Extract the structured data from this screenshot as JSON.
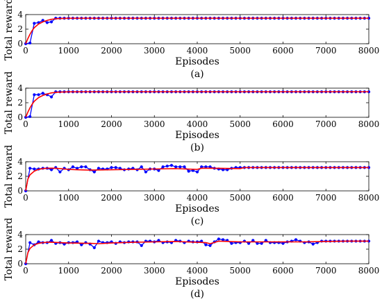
{
  "chart_data": [
    {
      "type": "line",
      "caption": "(a)",
      "xlabel": "Episodes",
      "ylabel": "Total reward",
      "xlim": [
        0,
        8000
      ],
      "ylim": [
        0,
        4
      ],
      "xticks": [
        "0",
        "1000",
        "2000",
        "3000",
        "4000",
        "5000",
        "6000",
        "7000",
        "8000"
      ],
      "yticks": [
        "0",
        "2",
        "4"
      ],
      "grid": false,
      "series": [
        {
          "role": "raw",
          "color": "#0000ff",
          "x": [
            0,
            100,
            200,
            300,
            400,
            500,
            600,
            700,
            800,
            900,
            1000,
            1100,
            1200,
            1300,
            1400,
            1500,
            1600,
            1700,
            1800,
            1900,
            2000,
            2100,
            2200,
            2300,
            2400,
            2500,
            2600,
            2700,
            2800,
            2900,
            3000,
            3100,
            3200,
            3300,
            3400,
            3500,
            3600,
            3700,
            3800,
            3900,
            4000,
            4100,
            4200,
            4300,
            4400,
            4500,
            4600,
            4700,
            4800,
            4900,
            5000,
            5100,
            5200,
            5300,
            5400,
            5500,
            5600,
            5700,
            5800,
            5900,
            6000,
            6100,
            6200,
            6300,
            6400,
            6500,
            6600,
            6700,
            6800,
            6900,
            7000,
            7100,
            7200,
            7300,
            7400,
            7500,
            7600,
            7700,
            7800,
            7900,
            8000
          ],
          "values": [
            0,
            0.1,
            2.8,
            2.9,
            3.2,
            2.9,
            3.0,
            3.5,
            3.5,
            3.5,
            3.5,
            3.5,
            3.5,
            3.5,
            3.5,
            3.5,
            3.5,
            3.5,
            3.5,
            3.5,
            3.5,
            3.5,
            3.5,
            3.5,
            3.5,
            3.5,
            3.5,
            3.5,
            3.5,
            3.5,
            3.5,
            3.5,
            3.5,
            3.5,
            3.5,
            3.5,
            3.5,
            3.5,
            3.5,
            3.5,
            3.5,
            3.5,
            3.5,
            3.5,
            3.5,
            3.5,
            3.5,
            3.5,
            3.5,
            3.5,
            3.5,
            3.5,
            3.5,
            3.5,
            3.5,
            3.5,
            3.5,
            3.5,
            3.5,
            3.5,
            3.5,
            3.5,
            3.5,
            3.5,
            3.5,
            3.5,
            3.5,
            3.5,
            3.5,
            3.5,
            3.5,
            3.5,
            3.5,
            3.5,
            3.5,
            3.5,
            3.5,
            3.5,
            3.5,
            3.5,
            3.5
          ]
        },
        {
          "role": "fit",
          "color": "#ff0000",
          "x": [
            0,
            50,
            100,
            150,
            200,
            300,
            400,
            500,
            600,
            700,
            800,
            1000,
            1500,
            2000,
            3000,
            4000,
            5000,
            6000,
            7000,
            8000
          ],
          "values": [
            0,
            0.7,
            1.3,
            1.8,
            2.2,
            2.7,
            3.0,
            3.2,
            3.35,
            3.42,
            3.46,
            3.49,
            3.5,
            3.5,
            3.5,
            3.5,
            3.5,
            3.5,
            3.5,
            3.5
          ]
        }
      ]
    },
    {
      "type": "line",
      "caption": "(b)",
      "xlabel": "Episodes",
      "ylabel": "Total reward",
      "xlim": [
        0,
        8000
      ],
      "ylim": [
        0,
        4
      ],
      "xticks": [
        "0",
        "1000",
        "2000",
        "3000",
        "4000",
        "5000",
        "6000",
        "7000",
        "8000"
      ],
      "yticks": [
        "0",
        "2",
        "4"
      ],
      "grid": false,
      "series": [
        {
          "role": "raw",
          "color": "#0000ff",
          "x": [
            0,
            100,
            200,
            300,
            400,
            500,
            600,
            700,
            800,
            900,
            1000,
            1100,
            1200,
            1300,
            1400,
            1500,
            1600,
            1700,
            1800,
            1900,
            2000,
            2100,
            2200,
            2300,
            2400,
            2500,
            2600,
            2700,
            2800,
            2900,
            3000,
            3100,
            3200,
            3300,
            3400,
            3500,
            3600,
            3700,
            3800,
            3900,
            4000,
            4100,
            4200,
            4300,
            4400,
            4500,
            4600,
            4700,
            4800,
            4900,
            5000,
            5100,
            5200,
            5300,
            5400,
            5500,
            5600,
            5700,
            5800,
            5900,
            6000,
            6100,
            6200,
            6300,
            6400,
            6500,
            6600,
            6700,
            6800,
            6900,
            7000,
            7100,
            7200,
            7300,
            7400,
            7500,
            7600,
            7700,
            7800,
            7900,
            8000
          ],
          "values": [
            0,
            0.1,
            3.1,
            3.1,
            3.3,
            3.1,
            2.8,
            3.5,
            3.5,
            3.5,
            3.5,
            3.5,
            3.5,
            3.5,
            3.5,
            3.5,
            3.5,
            3.5,
            3.5,
            3.5,
            3.5,
            3.5,
            3.5,
            3.5,
            3.5,
            3.5,
            3.5,
            3.5,
            3.5,
            3.5,
            3.5,
            3.5,
            3.5,
            3.5,
            3.5,
            3.5,
            3.5,
            3.5,
            3.5,
            3.5,
            3.5,
            3.5,
            3.5,
            3.5,
            3.5,
            3.5,
            3.5,
            3.5,
            3.5,
            3.5,
            3.5,
            3.5,
            3.5,
            3.5,
            3.5,
            3.5,
            3.5,
            3.5,
            3.5,
            3.5,
            3.5,
            3.5,
            3.5,
            3.5,
            3.5,
            3.5,
            3.5,
            3.5,
            3.5,
            3.5,
            3.5,
            3.5,
            3.5,
            3.5,
            3.5,
            3.5,
            3.5,
            3.5,
            3.5,
            3.5,
            3.5
          ]
        },
        {
          "role": "fit",
          "color": "#ff0000",
          "x": [
            0,
            50,
            100,
            150,
            200,
            300,
            400,
            500,
            600,
            700,
            800,
            1000,
            1500,
            2000,
            3000,
            4000,
            5000,
            6000,
            7000,
            8000
          ],
          "values": [
            0,
            0.7,
            1.3,
            1.8,
            2.2,
            2.7,
            3.0,
            3.2,
            3.35,
            3.42,
            3.46,
            3.49,
            3.5,
            3.5,
            3.5,
            3.5,
            3.5,
            3.5,
            3.5,
            3.5
          ]
        }
      ]
    },
    {
      "type": "line",
      "caption": "(c)",
      "xlabel": "Episodes",
      "ylabel": "Total reward",
      "xlim": [
        0,
        8000
      ],
      "ylim": [
        0,
        4
      ],
      "xticks": [
        "0",
        "1000",
        "2000",
        "3000",
        "4000",
        "5000",
        "6000",
        "7000",
        "8000"
      ],
      "yticks": [
        "0",
        "2",
        "4"
      ],
      "grid": false,
      "series": [
        {
          "role": "raw",
          "color": "#0000ff",
          "x": [
            0,
            100,
            200,
            300,
            400,
            500,
            600,
            700,
            800,
            900,
            1000,
            1100,
            1200,
            1300,
            1400,
            1500,
            1600,
            1700,
            1800,
            1900,
            2000,
            2100,
            2200,
            2300,
            2400,
            2500,
            2600,
            2700,
            2800,
            2900,
            3000,
            3100,
            3200,
            3300,
            3400,
            3500,
            3600,
            3700,
            3800,
            3900,
            4000,
            4100,
            4200,
            4300,
            4400,
            4500,
            4600,
            4700,
            4800,
            4900,
            5000,
            5100,
            5200,
            5300,
            5400,
            5500,
            5600,
            5700,
            5800,
            5900,
            6000,
            6100,
            6200,
            6300,
            6400,
            6500,
            6600,
            6700,
            6800,
            6900,
            7000,
            7100,
            7200,
            7300,
            7400,
            7500,
            7600,
            7700,
            7800,
            7900,
            8000
          ],
          "values": [
            0,
            3.1,
            3.0,
            3.0,
            3.1,
            3.1,
            2.9,
            3.2,
            2.6,
            3.1,
            2.9,
            3.3,
            3.1,
            3.3,
            3.3,
            2.9,
            2.6,
            3.1,
            3.0,
            3.0,
            3.2,
            3.2,
            3.1,
            2.9,
            3.0,
            3.1,
            2.9,
            3.3,
            2.6,
            3.0,
            3.0,
            2.8,
            3.3,
            3.4,
            3.5,
            3.3,
            3.3,
            3.3,
            2.7,
            2.8,
            2.6,
            3.3,
            3.3,
            3.3,
            3.1,
            3.0,
            2.9,
            2.9,
            3.1,
            3.2,
            3.2,
            3.2,
            3.2,
            3.2,
            3.2,
            3.2,
            3.2,
            3.2,
            3.2,
            3.2,
            3.2,
            3.2,
            3.2,
            3.2,
            3.2,
            3.2,
            3.2,
            3.2,
            3.2,
            3.2,
            3.2,
            3.2,
            3.2,
            3.2,
            3.2,
            3.2,
            3.2,
            3.2,
            3.2,
            3.2,
            3.2
          ]
        },
        {
          "role": "fit",
          "color": "#ff0000",
          "x": [
            0,
            50,
            100,
            200,
            300,
            400,
            500,
            600,
            700,
            800,
            900,
            1000,
            1200,
            1500,
            2000,
            2500,
            3000,
            3500,
            4000,
            4100,
            4500,
            5000,
            5100,
            6000,
            7000,
            8000
          ],
          "values": [
            0,
            1.6,
            2.2,
            2.7,
            2.95,
            3.05,
            3.1,
            3.12,
            3.1,
            3.05,
            3.0,
            2.95,
            2.9,
            2.85,
            2.9,
            2.95,
            3.0,
            3.05,
            2.95,
            3.1,
            3.1,
            3.05,
            3.2,
            3.2,
            3.2,
            3.2
          ]
        }
      ]
    },
    {
      "type": "line",
      "caption": "(d)",
      "xlabel": "Episodes",
      "ylabel": "Total reward",
      "xlim": [
        0,
        8000
      ],
      "ylim": [
        0,
        4
      ],
      "xticks": [
        "0",
        "1000",
        "2000",
        "3000",
        "4000",
        "5000",
        "6000",
        "7000",
        "8000"
      ],
      "yticks": [
        "0",
        "2",
        "4"
      ],
      "grid": false,
      "series": [
        {
          "role": "raw",
          "color": "#0000ff",
          "x": [
            0,
            100,
            200,
            300,
            400,
            500,
            600,
            700,
            800,
            900,
            1000,
            1100,
            1200,
            1300,
            1400,
            1500,
            1600,
            1700,
            1800,
            1900,
            2000,
            2100,
            2200,
            2300,
            2400,
            2500,
            2600,
            2700,
            2800,
            2900,
            3000,
            3100,
            3200,
            3300,
            3400,
            3500,
            3600,
            3700,
            3800,
            3900,
            4000,
            4100,
            4200,
            4300,
            4400,
            4500,
            4600,
            4700,
            4800,
            4900,
            5000,
            5100,
            5200,
            5300,
            5400,
            5500,
            5600,
            5700,
            5800,
            5900,
            6000,
            6100,
            6200,
            6300,
            6400,
            6500,
            6600,
            6700,
            6800,
            6900,
            7000,
            7100,
            7200,
            7300,
            7400,
            7500,
            7600,
            7700,
            7800,
            7900,
            8000
          ],
          "values": [
            0,
            2.9,
            2.6,
            3.0,
            2.9,
            2.9,
            3.2,
            2.8,
            2.9,
            2.7,
            2.9,
            2.9,
            3.0,
            2.6,
            2.9,
            2.7,
            2.2,
            3.1,
            2.9,
            2.9,
            3.0,
            2.8,
            3.0,
            2.9,
            3.0,
            3.0,
            3.0,
            2.5,
            3.1,
            3.1,
            3.0,
            3.2,
            2.9,
            3.0,
            2.9,
            3.2,
            3.1,
            2.9,
            3.1,
            3.0,
            3.0,
            3.1,
            2.6,
            2.5,
            3.0,
            3.4,
            3.3,
            3.2,
            2.8,
            2.9,
            2.9,
            3.1,
            2.8,
            3.2,
            2.8,
            2.8,
            3.2,
            2.9,
            2.9,
            2.9,
            2.8,
            3.0,
            3.1,
            3.3,
            3.1,
            2.9,
            3.0,
            2.7,
            2.9,
            3.1,
            3.1,
            3.1,
            3.1,
            3.1,
            3.1,
            3.1,
            3.1,
            3.1,
            3.1,
            3.1,
            3.1
          ]
        },
        {
          "role": "fit",
          "color": "#ff0000",
          "x": [
            0,
            50,
            100,
            200,
            300,
            400,
            500,
            600,
            800,
            1000,
            1500,
            1700,
            2000,
            2500,
            3000,
            3500,
            4000,
            4200,
            4300,
            4500,
            5000,
            5500,
            6000,
            6500,
            7000,
            7500,
            8000
          ],
          "values": [
            0,
            1.5,
            2.1,
            2.6,
            2.8,
            2.9,
            2.95,
            2.95,
            2.9,
            2.85,
            2.8,
            2.75,
            2.85,
            2.95,
            3.0,
            3.05,
            2.95,
            2.9,
            2.75,
            3.1,
            3.0,
            3.0,
            3.0,
            3.0,
            3.05,
            3.1,
            3.1
          ]
        }
      ]
    }
  ]
}
